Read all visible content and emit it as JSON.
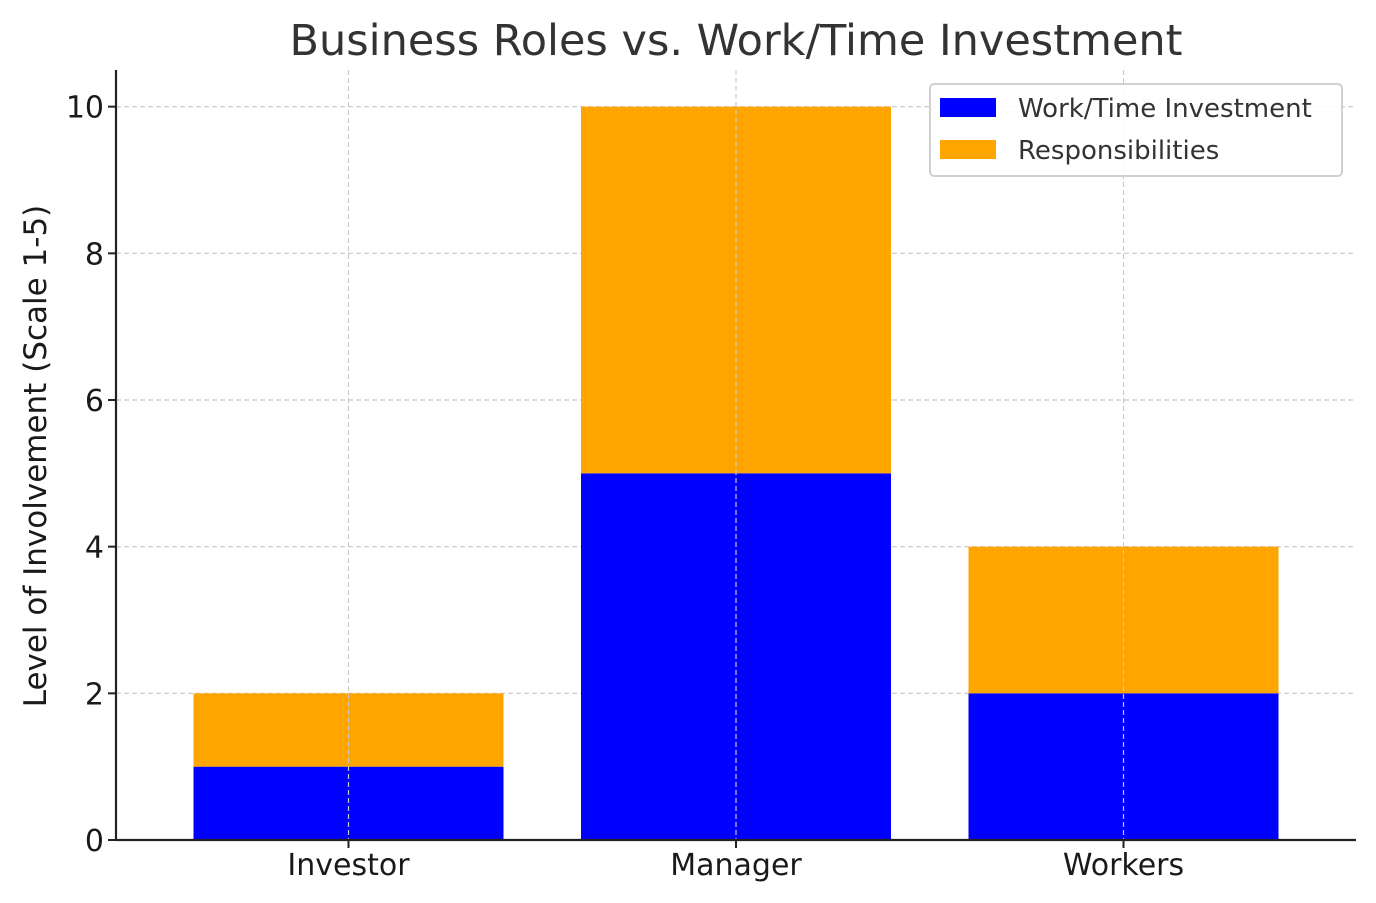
{
  "chart_data": {
    "type": "bar",
    "stacked": true,
    "title": "Business Roles vs. Work/Time Investment",
    "xlabel": "",
    "ylabel": "Level of Involvement (Scale 1-5)",
    "categories": [
      "Investor",
      "Manager",
      "Workers"
    ],
    "series": [
      {
        "name": "Work/Time Investment",
        "values": [
          1,
          5,
          2
        ],
        "color": "#0000ff"
      },
      {
        "name": "Responsibilities",
        "values": [
          1,
          5,
          2
        ],
        "color": "#ffa500"
      }
    ],
    "ylim": [
      0,
      10.5
    ],
    "yticks": [
      "0",
      "2",
      "4",
      "6",
      "8",
      "10"
    ],
    "grid": true,
    "legend": "top-right"
  }
}
